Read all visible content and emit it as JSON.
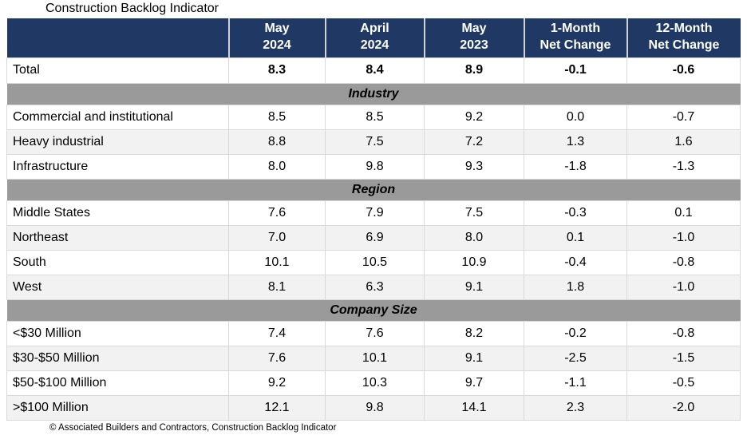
{
  "title": "Construction Backlog Indicator",
  "footer": "© Associated Builders and Contractors, Construction Backlog Indicator",
  "colors": {
    "header_bg": "#1f3864",
    "header_text": "#ffffff",
    "section_bg": "#9a9a9a",
    "row_alt_bg": "#f2f2f2",
    "cell_border": "#d9d9d9"
  },
  "chart_data": {
    "type": "table",
    "title": "Construction Backlog Indicator",
    "source_note": "© Associated Builders and Contractors, Construction Backlog Indicator",
    "columns": [
      {
        "label": "",
        "line1": "",
        "line2": ""
      },
      {
        "label": "May 2024",
        "line1": "May",
        "line2": "2024"
      },
      {
        "label": "April 2024",
        "line1": "April",
        "line2": "2024"
      },
      {
        "label": "May 2023",
        "line1": "May",
        "line2": "2023"
      },
      {
        "label": "1-Month Net Change",
        "line1": "1-Month",
        "line2": "Net Change"
      },
      {
        "label": "12-Month Net Change",
        "line1": "12-Month",
        "line2": "Net Change"
      }
    ],
    "total": {
      "label": "Total",
      "values": [
        "8.3",
        "8.4",
        "8.9",
        "-0.1",
        "-0.6"
      ]
    },
    "sections": [
      {
        "name": "Industry",
        "rows": [
          {
            "label": "Commercial and institutional",
            "values": [
              "8.5",
              "8.5",
              "9.2",
              "0.0",
              "-0.7"
            ]
          },
          {
            "label": "Heavy industrial",
            "values": [
              "8.8",
              "7.5",
              "7.2",
              "1.3",
              "1.6"
            ]
          },
          {
            "label": "Infrastructure",
            "values": [
              "8.0",
              "9.8",
              "9.3",
              "-1.8",
              "-1.3"
            ]
          }
        ]
      },
      {
        "name": "Region",
        "rows": [
          {
            "label": "Middle States",
            "values": [
              "7.6",
              "7.9",
              "7.5",
              "-0.3",
              "0.1"
            ]
          },
          {
            "label": "Northeast",
            "values": [
              "7.0",
              "6.9",
              "8.0",
              "0.1",
              "-1.0"
            ]
          },
          {
            "label": "South",
            "values": [
              "10.1",
              "10.5",
              "10.9",
              "-0.4",
              "-0.8"
            ]
          },
          {
            "label": "West",
            "values": [
              "8.1",
              "6.3",
              "9.1",
              "1.8",
              "-1.0"
            ]
          }
        ]
      },
      {
        "name": "Company Size",
        "rows": [
          {
            "label": "<$30 Million",
            "values": [
              "7.4",
              "7.6",
              "8.2",
              "-0.2",
              "-0.8"
            ]
          },
          {
            "label": "$30-$50 Million",
            "values": [
              "7.6",
              "10.1",
              "9.1",
              "-2.5",
              "-1.5"
            ]
          },
          {
            "label": "$50-$100 Million",
            "values": [
              "9.2",
              "10.3",
              "9.7",
              "-1.1",
              "-0.5"
            ]
          },
          {
            "label": ">$100 Million",
            "values": [
              "12.1",
              "9.8",
              "14.1",
              "2.3",
              "-2.0"
            ]
          }
        ]
      }
    ]
  }
}
